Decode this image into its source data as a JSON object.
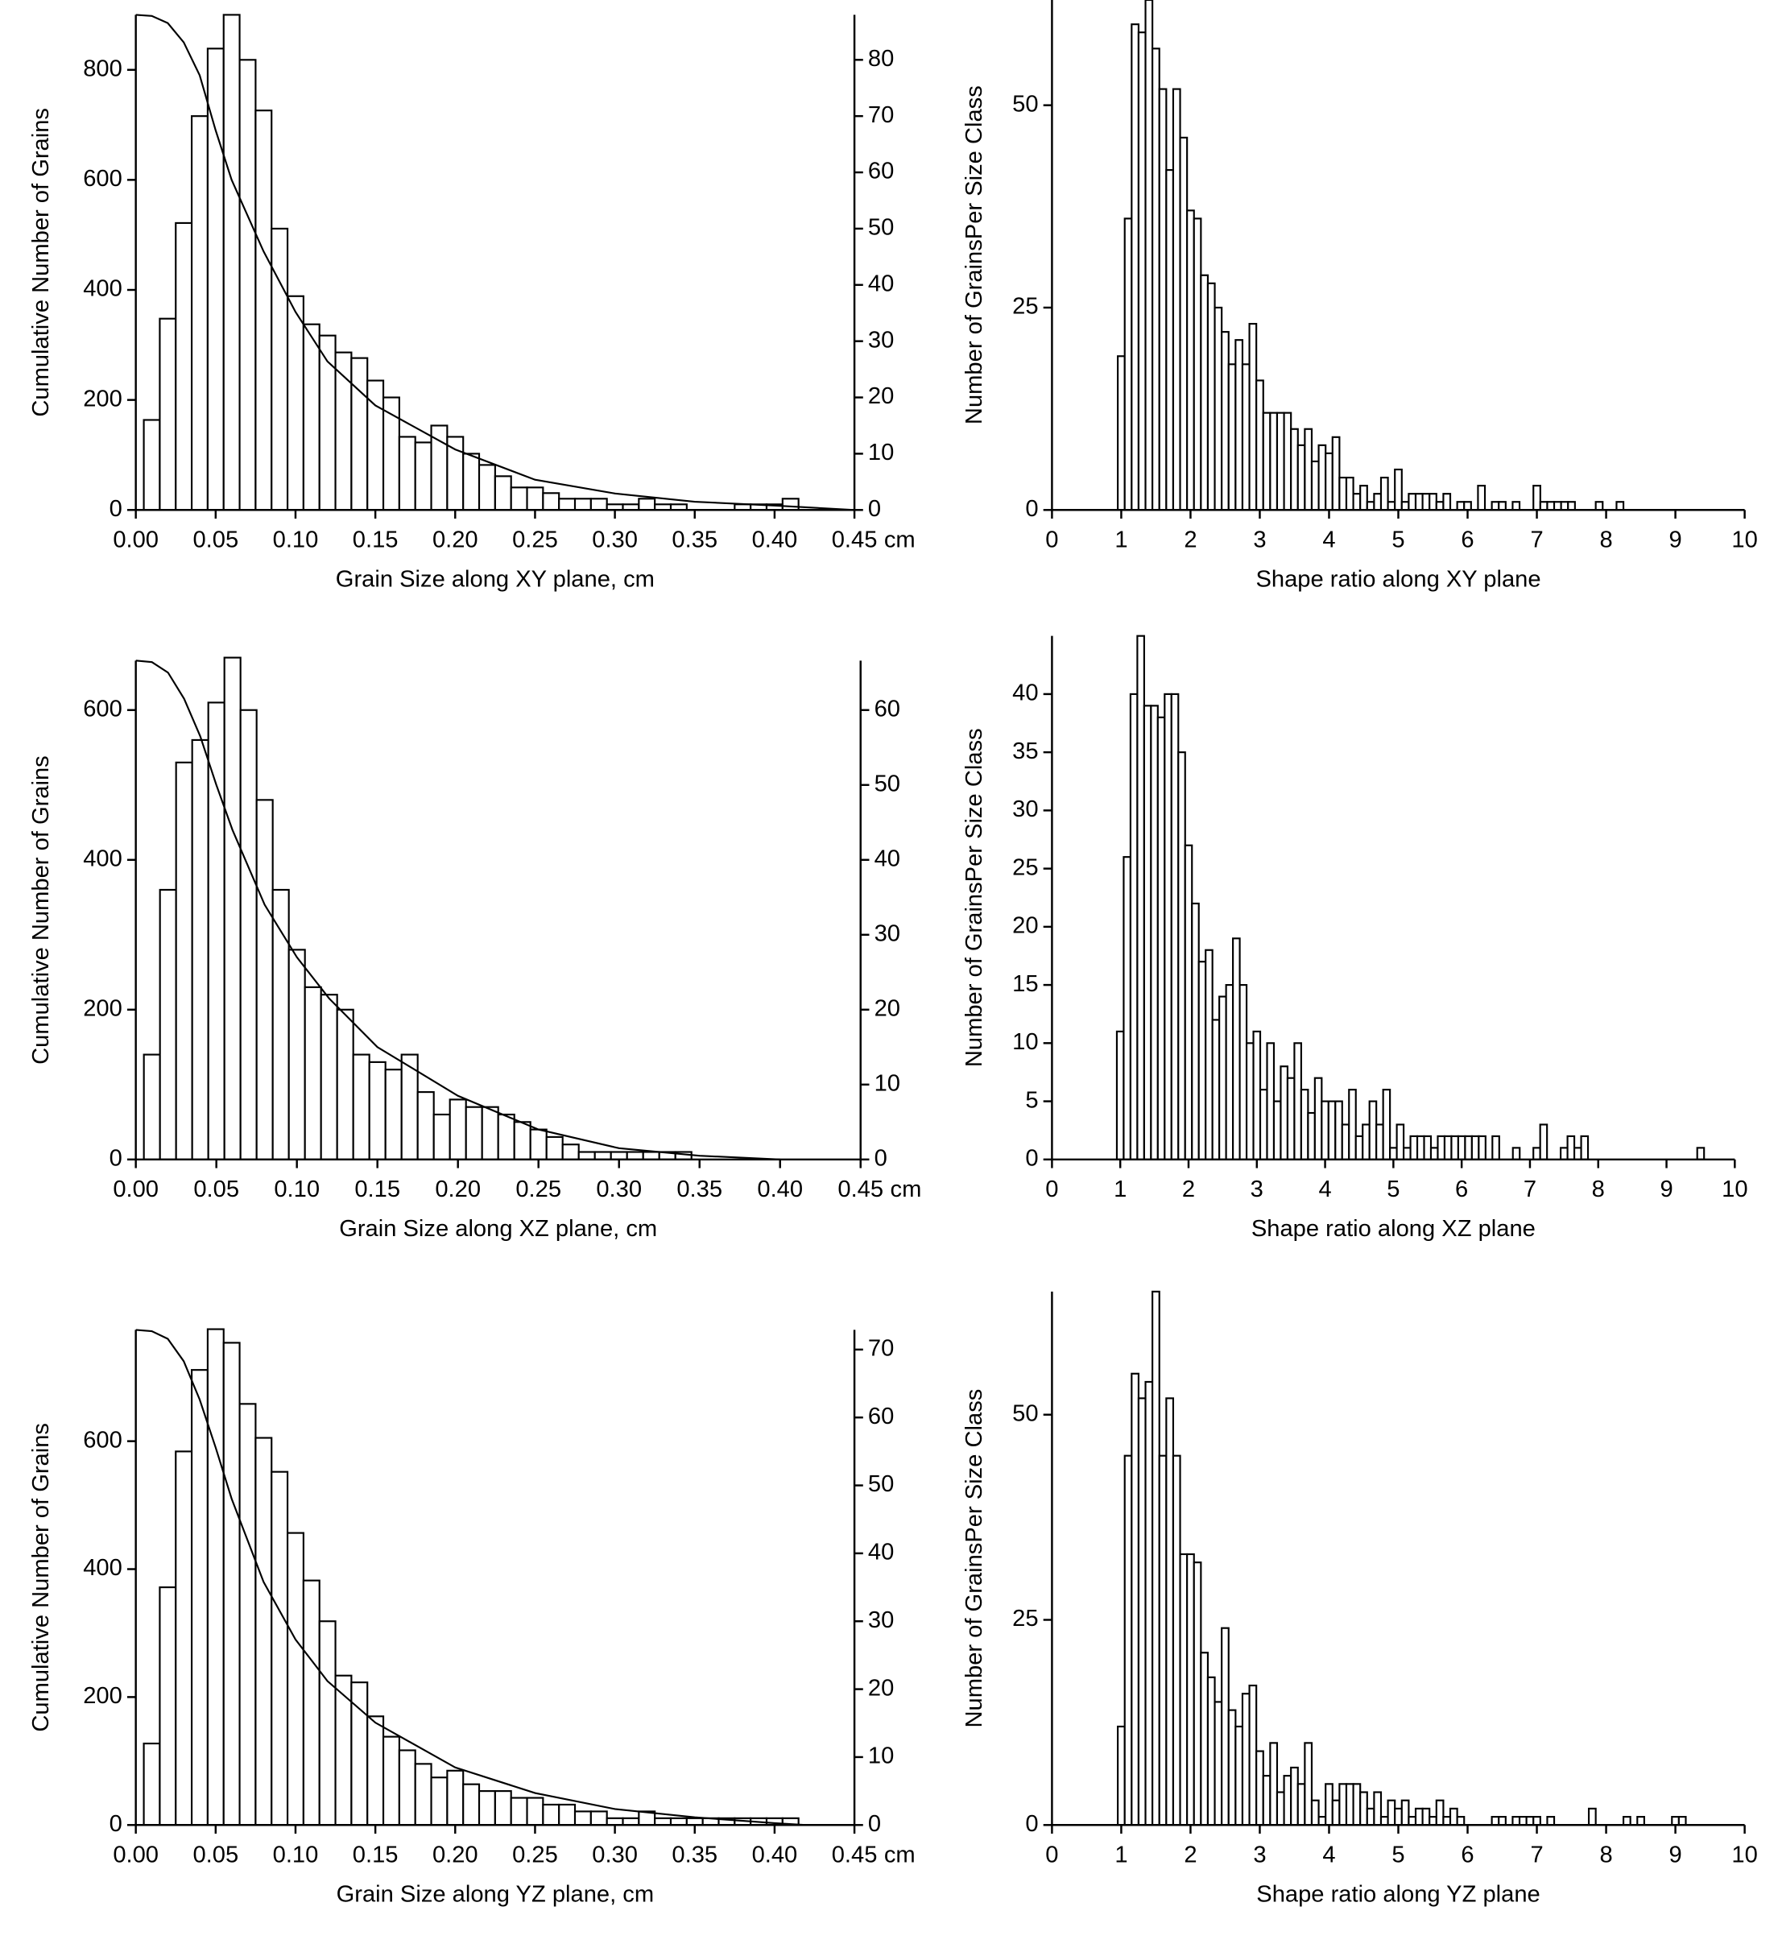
{
  "chart_data": [
    {
      "type": "histogram",
      "xlabel": "Grain Size along XY plane, cm",
      "ylabel": "Cumulative Number of Grains",
      "x_unit": "cm",
      "axis": "y2",
      "color": "#ffffff",
      "edgecolor": "#000000",
      "bins": [
        0.005,
        0.015,
        0.025,
        0.035,
        0.045,
        0.055,
        0.065,
        0.075,
        0.085,
        0.095,
        0.105,
        0.115,
        0.125,
        0.135,
        0.145,
        0.155,
        0.165,
        0.175,
        0.185,
        0.195,
        0.205,
        0.215,
        0.225,
        0.235,
        0.245,
        0.255,
        0.265,
        0.275,
        0.285,
        0.295,
        0.305,
        0.315,
        0.325,
        0.335,
        0.345,
        0.355,
        0.365,
        0.375,
        0.385,
        0.395,
        0.405,
        0.415,
        0.425,
        0.435
      ],
      "values": [
        16,
        34,
        51,
        70,
        82,
        88,
        80,
        71,
        50,
        38,
        33,
        31,
        28,
        27,
        23,
        20,
        13,
        12,
        15,
        13,
        10,
        8,
        6,
        4,
        4,
        3,
        2,
        2,
        2,
        1,
        1,
        2,
        1,
        1,
        0,
        0,
        0,
        1,
        1,
        1,
        2,
        0,
        0
      ],
      "cumulative": {
        "x": [
          0,
          0.01,
          0.02,
          0.03,
          0.04,
          0.05,
          0.06,
          0.08,
          0.1,
          0.12,
          0.15,
          0.2,
          0.25,
          0.3,
          0.35,
          0.4,
          0.45
        ],
        "values": [
          900,
          898,
          885,
          850,
          790,
          690,
          600,
          470,
          360,
          270,
          190,
          110,
          55,
          30,
          15,
          8,
          0
        ]
      },
      "xlim": [
        0,
        0.45
      ],
      "xticks": [
        {
          "value": 0,
          "label": "0.00"
        },
        0.05,
        {
          "value": 0.1,
          "label": "0.10"
        },
        0.15,
        {
          "value": 0.2,
          "label": "0.20"
        },
        0.25,
        {
          "value": 0.3,
          "label": "0.30"
        },
        0.35,
        {
          "value": 0.4,
          "label": "0.40"
        },
        0.45
      ],
      "ylim": [
        0,
        900
      ],
      "yticks": [
        0,
        200,
        400,
        600,
        800
      ],
      "y2lim": [
        0,
        88
      ],
      "y2ticks": [
        0,
        10,
        20,
        30,
        40,
        50,
        60,
        70,
        80
      ]
    },
    {
      "type": "histogram",
      "xlabel": "Shape ratio along XY plane",
      "ylabel": "Number of GrainsPer Size Class",
      "color": "#ffffff",
      "edgecolor": "#000000",
      "bins": [
        0.95,
        1.05,
        1.15,
        1.25,
        1.35,
        1.45,
        1.55,
        1.65,
        1.75,
        1.85,
        1.95,
        2.05,
        2.15,
        2.25,
        2.35,
        2.45,
        2.55,
        2.65,
        2.75,
        2.85,
        2.95,
        3.05,
        3.15,
        3.25,
        3.35,
        3.45,
        3.55,
        3.65,
        3.75,
        3.85,
        3.95,
        4.05,
        4.15,
        4.25,
        4.35,
        4.45,
        4.55,
        4.65,
        4.75,
        4.85,
        4.95,
        5.05,
        5.15,
        5.25,
        5.35,
        5.45,
        5.55,
        5.65,
        5.75,
        5.85,
        5.95,
        6.05,
        6.15,
        6.25,
        6.35,
        6.45,
        6.55,
        6.65,
        6.75,
        6.85,
        6.95,
        7.05,
        7.15,
        7.25,
        7.35,
        7.45,
        7.55,
        7.65,
        7.75,
        7.85,
        7.95,
        8.05,
        8.15,
        8.25
      ],
      "values": [
        19,
        36,
        60,
        59,
        63,
        57,
        52,
        42,
        52,
        46,
        37,
        36,
        29,
        28,
        25,
        22,
        18,
        21,
        18,
        23,
        16,
        12,
        12,
        12,
        12,
        10,
        8,
        10,
        6,
        8,
        7,
        9,
        4,
        4,
        2,
        3,
        1,
        2,
        4,
        1,
        5,
        1,
        2,
        2,
        2,
        2,
        1,
        2,
        0,
        1,
        1,
        0,
        3,
        0,
        1,
        1,
        0,
        1,
        0,
        0,
        3,
        1,
        1,
        1,
        1,
        1,
        0,
        0,
        0,
        1,
        0,
        0,
        1
      ],
      "xlim": [
        0,
        10
      ],
      "xticks": [
        0,
        1,
        2,
        3,
        4,
        5,
        6,
        7,
        8,
        9,
        10
      ],
      "ylim": [
        0,
        63
      ],
      "yticks": [
        0,
        25,
        50
      ]
    },
    {
      "type": "histogram",
      "xlabel": "Grain Size along XZ plane, cm",
      "ylabel": "Cumulative Number of Grains",
      "x_unit": "cm",
      "axis": "y2",
      "color": "#ffffff",
      "edgecolor": "#000000",
      "bins": [
        0.005,
        0.015,
        0.025,
        0.035,
        0.045,
        0.055,
        0.065,
        0.075,
        0.085,
        0.095,
        0.105,
        0.115,
        0.125,
        0.135,
        0.145,
        0.155,
        0.165,
        0.175,
        0.185,
        0.195,
        0.205,
        0.215,
        0.225,
        0.235,
        0.245,
        0.255,
        0.265,
        0.275,
        0.285,
        0.295,
        0.305,
        0.315,
        0.325,
        0.335,
        0.345,
        0.355,
        0.365,
        0.375,
        0.385,
        0.395
      ],
      "values": [
        14,
        36,
        53,
        56,
        61,
        67,
        60,
        48,
        36,
        28,
        23,
        22,
        20,
        14,
        13,
        12,
        14,
        9,
        6,
        8,
        7,
        7,
        6,
        5,
        4,
        3,
        2,
        1,
        1,
        1,
        1,
        1,
        1,
        1,
        0,
        0,
        0,
        0,
        0
      ],
      "cumulative": {
        "x": [
          0,
          0.01,
          0.02,
          0.03,
          0.04,
          0.05,
          0.06,
          0.08,
          0.1,
          0.12,
          0.15,
          0.2,
          0.25,
          0.3,
          0.35,
          0.4
        ],
        "values": [
          666,
          664,
          650,
          615,
          565,
          500,
          440,
          340,
          270,
          215,
          150,
          85,
          40,
          15,
          5,
          0
        ]
      },
      "xlim": [
        0,
        0.45
      ],
      "xticks": [
        {
          "value": 0,
          "label": "0.00"
        },
        0.05,
        {
          "value": 0.1,
          "label": "0.10"
        },
        0.15,
        {
          "value": 0.2,
          "label": "0.20"
        },
        0.25,
        {
          "value": 0.3,
          "label": "0.30"
        },
        0.35,
        {
          "value": 0.4,
          "label": "0.40"
        },
        0.45
      ],
      "ylim": [
        0,
        666
      ],
      "yticks": [
        0,
        200,
        400,
        600
      ],
      "y2lim": [
        0,
        66.6
      ],
      "y2ticks": [
        0,
        10,
        20,
        30,
        40,
        50,
        60
      ]
    },
    {
      "type": "histogram",
      "xlabel": "Shape ratio along XZ plane",
      "ylabel": "Number of GrainsPer Size Class",
      "color": "#ffffff",
      "edgecolor": "#000000",
      "bins": [
        0.95,
        1.05,
        1.15,
        1.25,
        1.35,
        1.45,
        1.55,
        1.65,
        1.75,
        1.85,
        1.95,
        2.05,
        2.15,
        2.25,
        2.35,
        2.45,
        2.55,
        2.65,
        2.75,
        2.85,
        2.95,
        3.05,
        3.15,
        3.25,
        3.35,
        3.45,
        3.55,
        3.65,
        3.75,
        3.85,
        3.95,
        4.05,
        4.15,
        4.25,
        4.35,
        4.45,
        4.55,
        4.65,
        4.75,
        4.85,
        4.95,
        5.05,
        5.15,
        5.25,
        5.35,
        5.45,
        5.55,
        5.65,
        5.75,
        5.85,
        5.95,
        6.05,
        6.15,
        6.25,
        6.35,
        6.45,
        6.55,
        6.65,
        6.75,
        6.85,
        6.95,
        7.05,
        7.15,
        7.25,
        7.35,
        7.45,
        7.55,
        7.65,
        7.75,
        7.85,
        7.95,
        8.05,
        8.15,
        8.25,
        8.35,
        8.45,
        8.55,
        8.65,
        8.75,
        8.85,
        8.95,
        9.05,
        9.15,
        9.25,
        9.35,
        9.45,
        9.55
      ],
      "values": [
        11,
        26,
        40,
        45,
        39,
        39,
        38,
        40,
        40,
        35,
        27,
        22,
        17,
        18,
        12,
        14,
        15,
        19,
        15,
        10,
        11,
        6,
        10,
        5,
        8,
        7,
        10,
        6,
        4,
        7,
        5,
        5,
        5,
        3,
        6,
        2,
        3,
        5,
        3,
        6,
        1,
        3,
        1,
        2,
        2,
        2,
        1,
        2,
        2,
        2,
        2,
        2,
        2,
        2,
        0,
        2,
        0,
        0,
        1,
        0,
        0,
        1,
        3,
        0,
        0,
        1,
        2,
        1,
        2,
        0,
        0,
        0,
        0,
        0,
        0,
        0,
        0,
        0,
        0,
        0,
        0,
        0,
        0,
        0,
        0,
        1
      ],
      "xlim": [
        0,
        10
      ],
      "xticks": [
        0,
        1,
        2,
        3,
        4,
        5,
        6,
        7,
        8,
        9,
        10
      ],
      "ylim": [
        0,
        45
      ],
      "yticks": [
        0,
        5,
        10,
        15,
        20,
        25,
        30,
        35,
        40
      ]
    },
    {
      "type": "histogram",
      "xlabel": "Grain Size along YZ plane, cm",
      "ylabel": "Cumulative Number of Grains",
      "x_unit": "cm",
      "axis": "y2",
      "color": "#ffffff",
      "edgecolor": "#000000",
      "bins": [
        0.005,
        0.015,
        0.025,
        0.035,
        0.045,
        0.055,
        0.065,
        0.075,
        0.085,
        0.095,
        0.105,
        0.115,
        0.125,
        0.135,
        0.145,
        0.155,
        0.165,
        0.175,
        0.185,
        0.195,
        0.205,
        0.215,
        0.225,
        0.235,
        0.245,
        0.255,
        0.265,
        0.275,
        0.285,
        0.295,
        0.305,
        0.315,
        0.325,
        0.335,
        0.345,
        0.355,
        0.365,
        0.375,
        0.385,
        0.395,
        0.405,
        0.415
      ],
      "values": [
        12,
        35,
        55,
        67,
        73,
        71,
        62,
        57,
        52,
        43,
        36,
        30,
        22,
        21,
        16,
        13,
        11,
        9,
        7,
        8,
        6,
        5,
        5,
        4,
        4,
        3,
        3,
        2,
        2,
        1,
        1,
        2,
        1,
        1,
        1,
        1,
        1,
        1,
        1,
        1,
        1
      ],
      "cumulative": {
        "x": [
          0,
          0.01,
          0.02,
          0.03,
          0.04,
          0.05,
          0.06,
          0.08,
          0.1,
          0.12,
          0.15,
          0.2,
          0.25,
          0.3,
          0.35,
          0.4,
          0.42
        ],
        "values": [
          774,
          772,
          760,
          725,
          665,
          590,
          510,
          380,
          290,
          225,
          160,
          90,
          50,
          25,
          12,
          3,
          0
        ]
      },
      "xlim": [
        0,
        0.45
      ],
      "xticks": [
        {
          "value": 0,
          "label": "0.00"
        },
        0.05,
        {
          "value": 0.1,
          "label": "0.10"
        },
        0.15,
        {
          "value": 0.2,
          "label": "0.20"
        },
        0.25,
        {
          "value": 0.3,
          "label": "0.30"
        },
        0.35,
        {
          "value": 0.4,
          "label": "0.40"
        },
        0.45
      ],
      "ylim": [
        0,
        774
      ],
      "yticks": [
        0,
        200,
        400,
        600
      ],
      "y2lim": [
        0,
        72.9
      ],
      "y2ticks": [
        0,
        10,
        20,
        30,
        40,
        50,
        60,
        70
      ]
    },
    {
      "type": "histogram",
      "xlabel": "Shape ratio along YZ plane",
      "ylabel": "Number of GrainsPer Size Class",
      "color": "#ffffff",
      "edgecolor": "#000000",
      "bins": [
        0.95,
        1.05,
        1.15,
        1.25,
        1.35,
        1.45,
        1.55,
        1.65,
        1.75,
        1.85,
        1.95,
        2.05,
        2.15,
        2.25,
        2.35,
        2.45,
        2.55,
        2.65,
        2.75,
        2.85,
        2.95,
        3.05,
        3.15,
        3.25,
        3.35,
        3.45,
        3.55,
        3.65,
        3.75,
        3.85,
        3.95,
        4.05,
        4.15,
        4.25,
        4.35,
        4.45,
        4.55,
        4.65,
        4.75,
        4.85,
        4.95,
        5.05,
        5.15,
        5.25,
        5.35,
        5.45,
        5.55,
        5.65,
        5.75,
        5.85,
        5.95,
        6.05,
        6.15,
        6.25,
        6.35,
        6.45,
        6.55,
        6.65,
        6.75,
        6.85,
        6.95,
        7.05,
        7.15,
        7.25,
        7.35,
        7.45,
        7.55,
        7.65,
        7.75,
        7.85,
        7.95,
        8.05,
        8.15,
        8.25,
        8.35,
        8.45,
        8.55,
        8.65,
        8.75,
        8.85,
        8.95,
        9.05,
        9.15
      ],
      "values": [
        12,
        45,
        55,
        52,
        54,
        65,
        45,
        52,
        45,
        33,
        33,
        32,
        21,
        18,
        15,
        24,
        14,
        12,
        16,
        17,
        9,
        6,
        10,
        4,
        6,
        7,
        5,
        10,
        3,
        1,
        5,
        3,
        5,
        5,
        5,
        4,
        2,
        4,
        1,
        3,
        2,
        3,
        1,
        2,
        2,
        1,
        3,
        1,
        2,
        1,
        0,
        0,
        0,
        0,
        1,
        1,
        0,
        1,
        1,
        1,
        1,
        0,
        1,
        0,
        0,
        0,
        0,
        0,
        2,
        0,
        0,
        0,
        0,
        1,
        0,
        1,
        0,
        0,
        0,
        0,
        1,
        1
      ],
      "xlim": [
        0,
        10
      ],
      "xticks": [
        0,
        1,
        2,
        3,
        4,
        5,
        6,
        7,
        8,
        9,
        10
      ],
      "ylim": [
        0,
        65
      ],
      "yticks": [
        0,
        25,
        50
      ]
    }
  ]
}
